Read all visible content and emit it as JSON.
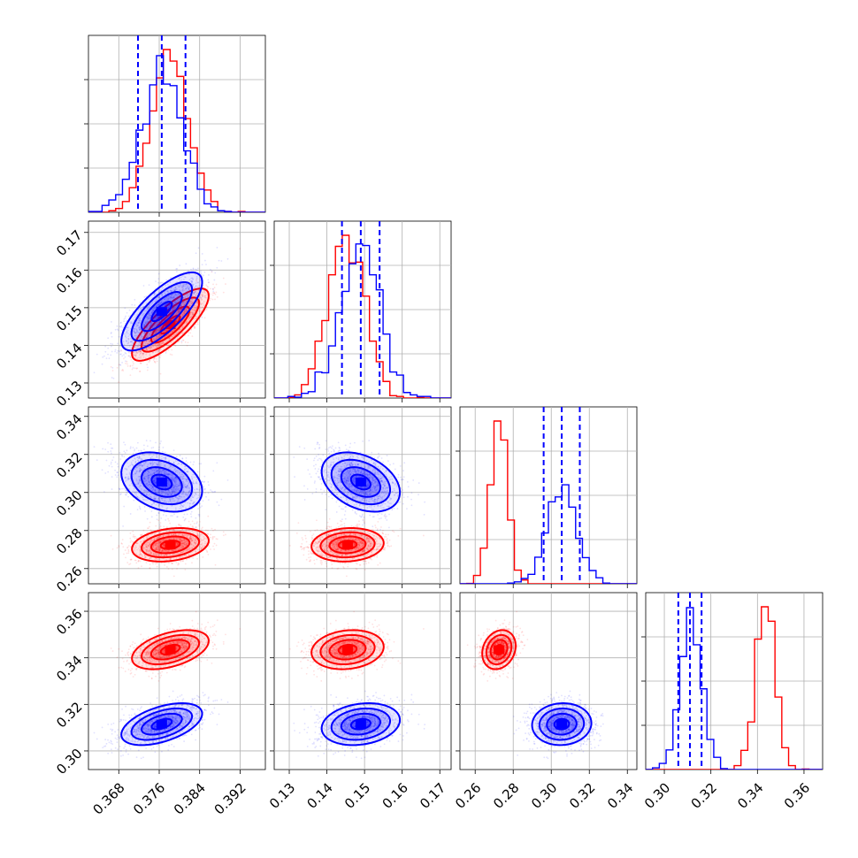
{
  "colors": {
    "red": "#ff0000",
    "blue": "#0000ff",
    "grid": "#b0b0b0"
  },
  "chart_data": {
    "type": "corner",
    "parameters": [
      {
        "range": [
          0.362,
          0.397
        ],
        "ticks": [
          0.368,
          0.376,
          0.384,
          0.392
        ],
        "tick_labels": [
          "0.368",
          "0.376",
          "0.384",
          "0.392"
        ]
      },
      {
        "range": [
          0.126,
          0.173
        ],
        "ticks": [
          0.13,
          0.14,
          0.15,
          0.16,
          0.17
        ],
        "tick_labels": [
          "0.13",
          "0.14",
          "0.15",
          "0.16",
          "0.17"
        ]
      },
      {
        "range": [
          0.252,
          0.345
        ],
        "ticks": [
          0.26,
          0.28,
          0.3,
          0.32,
          0.34
        ],
        "tick_labels": [
          "0.26",
          "0.28",
          "0.30",
          "0.32",
          "0.34"
        ]
      },
      {
        "range": [
          0.292,
          0.368
        ],
        "ticks": [
          0.3,
          0.32,
          0.34,
          0.36
        ],
        "tick_labels": [
          "0.30",
          "0.32",
          "0.34",
          "0.36"
        ]
      }
    ],
    "series": [
      {
        "color": "#ff0000",
        "mean": [
          0.3782,
          0.1455,
          0.2725,
          0.3435
        ],
        "sd": [
          0.0038,
          0.0048,
          0.0044,
          0.0042
        ],
        "corr": [
          [
            1.0,
            0.8,
            0.25,
            0.45
          ],
          [
            0.8,
            1.0,
            0.1,
            0.15
          ],
          [
            0.25,
            0.1,
            1.0,
            0.2
          ],
          [
            0.45,
            0.15,
            0.2,
            1.0
          ]
        ]
      },
      {
        "color": "#0000ff",
        "mean": [
          0.3765,
          0.149,
          0.3055,
          0.3115
        ],
        "sd": [
          0.004,
          0.0052,
          0.0078,
          0.0045
        ],
        "corr": [
          [
            1.0,
            0.75,
            -0.3,
            0.5
          ],
          [
            0.75,
            1.0,
            -0.35,
            0.2
          ],
          [
            -0.3,
            -0.35,
            1.0,
            0.05
          ],
          [
            0.5,
            0.2,
            0.05,
            1.0
          ]
        ]
      }
    ],
    "quantile_series_color": "#0000ff",
    "quantile_lines": [
      [
        0.3718,
        0.3765,
        0.3812
      ],
      [
        0.144,
        0.149,
        0.154
      ],
      [
        0.296,
        0.3055,
        0.315
      ],
      [
        0.306,
        0.311,
        0.316
      ]
    ],
    "contour_levels_sigma": [
      0.5,
      1.0,
      1.5,
      2.0
    ],
    "grid": true,
    "legend": "none"
  }
}
